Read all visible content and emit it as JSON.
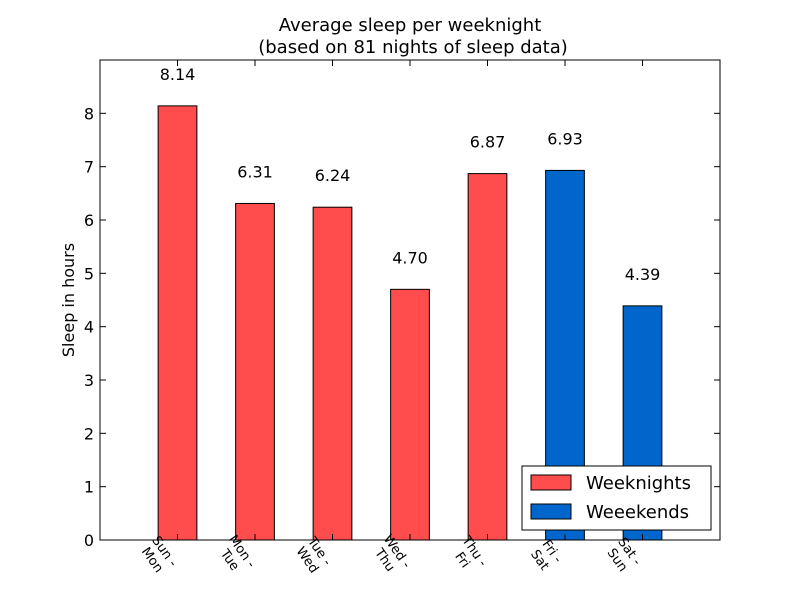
{
  "chart_data": {
    "type": "bar",
    "title": "Average sleep per weeknight",
    "subtitle": "(based on 81 nights of sleep data)",
    "xlabel": "",
    "ylabel": "Sleep in hours",
    "ylim": [
      0,
      9
    ],
    "yticks": [
      0,
      1,
      2,
      3,
      4,
      5,
      6,
      7,
      8
    ],
    "xlim": [
      0,
      8
    ],
    "grid": false,
    "legend_position": "bottom-right",
    "categories": [
      [
        "Sun -",
        "Mon"
      ],
      [
        "Mon -",
        "Tue"
      ],
      [
        "Tue -",
        "Wed"
      ],
      [
        "Wed -",
        "Thu"
      ],
      [
        "Thu -",
        "Fri"
      ],
      [
        "Fri -",
        "Sat"
      ],
      [
        "Sat -",
        "Sun"
      ]
    ],
    "series": [
      {
        "name": "Weeknights",
        "color": "#ff4c4c",
        "positions": [
          1,
          2,
          3,
          4,
          5
        ],
        "values": [
          8.14,
          6.31,
          6.24,
          4.7,
          6.87
        ]
      },
      {
        "name": "Weeekends",
        "color": "#0066cc",
        "positions": [
          6,
          7
        ],
        "values": [
          6.93,
          4.39
        ]
      }
    ],
    "value_labels": [
      "8.14",
      "6.31",
      "6.24",
      "4.70",
      "6.87",
      "6.93",
      "4.39"
    ]
  }
}
